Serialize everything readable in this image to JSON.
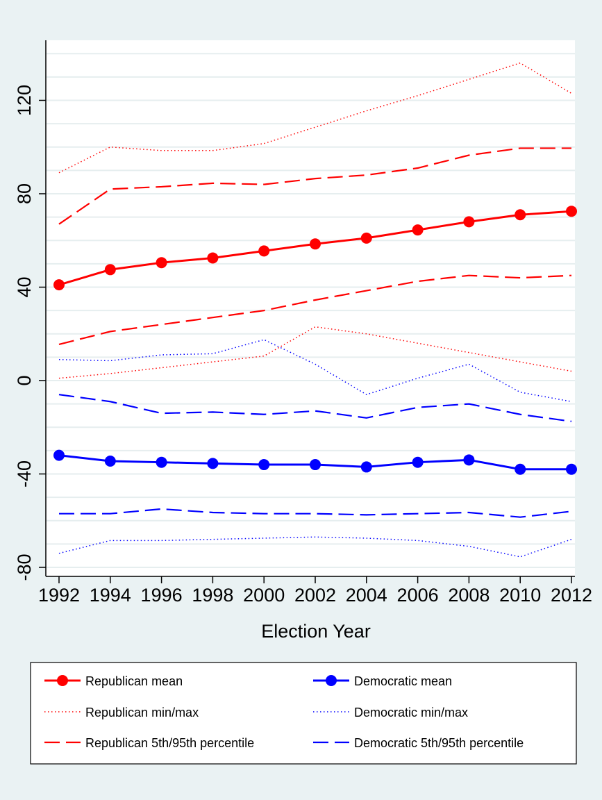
{
  "chart_data": {
    "type": "line",
    "xlabel": "Election Year",
    "ylabel": "",
    "x": [
      1992,
      1994,
      1996,
      1998,
      2000,
      2002,
      2004,
      2006,
      2008,
      2010,
      2012
    ],
    "x_tick_labels": [
      "1992",
      "1994",
      "1996",
      "1998",
      "2000",
      "2002",
      "2004",
      "2006",
      "2008",
      "2010",
      "2012"
    ],
    "y_ticks": [
      -80,
      -40,
      0,
      40,
      80,
      120
    ],
    "y_tick_labels": [
      "-80",
      "-40",
      "0",
      "40",
      "80",
      "120"
    ],
    "ylim": [
      -84,
      145
    ],
    "xlim": [
      1991.5,
      2012.3
    ],
    "grid": true,
    "legend_position": "bottom",
    "series": [
      {
        "name": "Republican mean",
        "color": "#ff0000",
        "style": "solid-marker",
        "values": [
          41,
          47.5,
          50.5,
          52.5,
          55.5,
          58.5,
          61,
          64.5,
          68,
          71,
          72.5
        ]
      },
      {
        "name": "Democratic mean",
        "color": "#0000ff",
        "style": "solid-marker",
        "values": [
          -32,
          -34.5,
          -35,
          -35.5,
          -36,
          -36,
          -37,
          -35,
          -34,
          -38,
          -38
        ]
      },
      {
        "name": "Republican min/max",
        "color": "#ff0000",
        "style": "dotted",
        "group": "max",
        "values": [
          89,
          100,
          98.5,
          98.5,
          101.5,
          108.5,
          115.5,
          122,
          129,
          136,
          123
        ]
      },
      {
        "name": "Republican min/max",
        "color": "#ff0000",
        "style": "dotted",
        "group": "min",
        "values": [
          1,
          3,
          5.5,
          8,
          10.5,
          23,
          20,
          16,
          12,
          8,
          4
        ]
      },
      {
        "name": "Democratic min/max",
        "color": "#0000ff",
        "style": "dotted",
        "group": "max",
        "values": [
          9,
          8.5,
          11,
          11.5,
          17.5,
          7,
          -6,
          1,
          7,
          -5,
          -9
        ]
      },
      {
        "name": "Democratic min/max",
        "color": "#0000ff",
        "style": "dotted",
        "group": "min",
        "values": [
          -74,
          -68.5,
          -68.5,
          -68,
          -67.5,
          -67,
          -67.5,
          -68.5,
          -71,
          -75.5,
          -68
        ]
      },
      {
        "name": "Republican 5th/95th percentile",
        "color": "#ff0000",
        "style": "dashed",
        "group": "p95",
        "values": [
          67,
          82,
          83,
          84.5,
          84,
          86.5,
          88,
          91,
          96.5,
          99.5,
          99.5
        ]
      },
      {
        "name": "Republican 5th/95th percentile",
        "color": "#ff0000",
        "style": "dashed",
        "group": "p5",
        "values": [
          15.5,
          21,
          24,
          27,
          30,
          34.5,
          38.5,
          42.5,
          45,
          44,
          45
        ]
      },
      {
        "name": "Democratic 5th/95th percentile",
        "color": "#0000ff",
        "style": "dashed",
        "group": "p95",
        "values": [
          -6,
          -9,
          -14,
          -13.5,
          -14.5,
          -13,
          -16,
          -11.5,
          -10,
          -14.5,
          -17.5
        ]
      },
      {
        "name": "Democratic 5th/95th percentile",
        "color": "#0000ff",
        "style": "dashed",
        "group": "p5",
        "values": [
          -57,
          -57,
          -55,
          -56.5,
          -57,
          -57,
          -57.5,
          -57,
          -56.5,
          -58.5,
          -56
        ]
      }
    ],
    "legend": [
      {
        "label": "Republican mean",
        "color": "#ff0000",
        "style": "solid-marker"
      },
      {
        "label": "Democratic mean",
        "color": "#0000ff",
        "style": "solid-marker"
      },
      {
        "label": "Republican min/max",
        "color": "#ff0000",
        "style": "dotted"
      },
      {
        "label": "Democratic min/max",
        "color": "#0000ff",
        "style": "dotted"
      },
      {
        "label": "Republican 5th/95th percentile",
        "color": "#ff0000",
        "style": "dashed"
      },
      {
        "label": "Democratic 5th/95th percentile",
        "color": "#0000ff",
        "style": "dashed"
      }
    ]
  }
}
